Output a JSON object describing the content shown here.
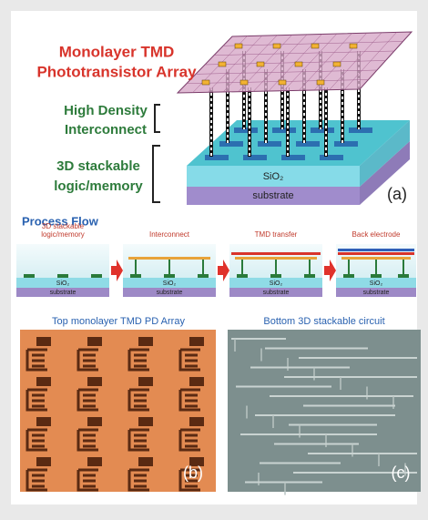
{
  "panel_a": {
    "array_label": [
      "Monolayer TMD",
      "Phototransistor Array"
    ],
    "interconnect_label": [
      "High Density",
      "Interconnect"
    ],
    "logic_label": [
      "3D stackable",
      "logic/memory"
    ],
    "layers": [
      "SiO₂",
      "substrate"
    ],
    "tag": "(a)"
  },
  "process_flow": {
    "title": "Process Flow",
    "steps": [
      {
        "label": [
          "3D stackable",
          "logic/memory"
        ],
        "layers": [
          "SiO₂",
          "substrate"
        ]
      },
      {
        "label": [
          "Interconnect"
        ],
        "layers": [
          "SiO₂",
          "substrate"
        ]
      },
      {
        "label": [
          "TMD transfer"
        ],
        "layers": [
          "SiO₂",
          "substrate"
        ]
      },
      {
        "label": [
          "Back electrode"
        ],
        "layers": [
          "SiO₂",
          "substrate"
        ]
      }
    ]
  },
  "panel_b": {
    "caption": "Top monolayer TMD PD Array",
    "tag": "(b)"
  },
  "panel_c": {
    "caption": "Bottom 3D stackable circuit",
    "tag": "(c)"
  }
}
